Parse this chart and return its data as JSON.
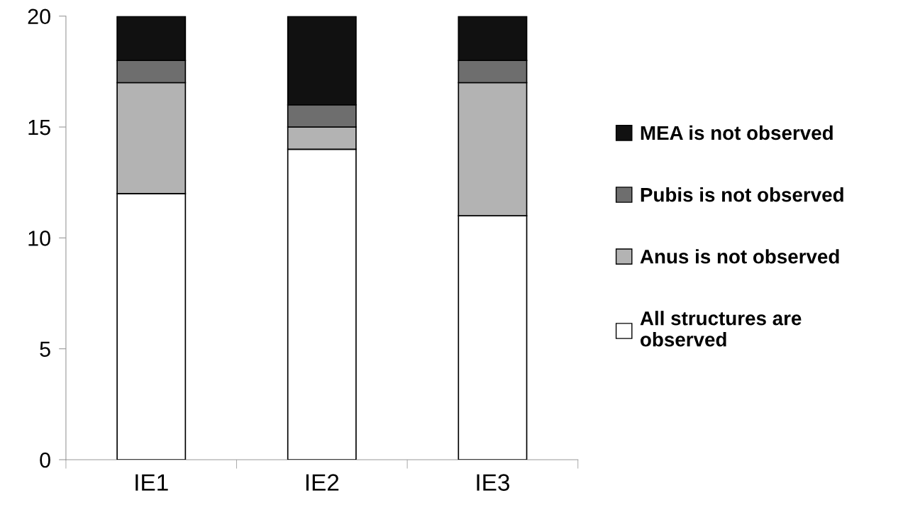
{
  "chart_data": {
    "type": "bar",
    "stacked": true,
    "categories": [
      "IE1",
      "IE2",
      "IE3"
    ],
    "series": [
      {
        "name": "All structures are\nobserved",
        "color": "#ffffff",
        "values": [
          12,
          14,
          11
        ]
      },
      {
        "name": "Anus is not observed",
        "color": "#b3b3b3",
        "values": [
          5,
          1,
          6
        ]
      },
      {
        "name": "Pubis is not observed",
        "color": "#6e6e6e",
        "values": [
          1,
          1,
          1
        ]
      },
      {
        "name": "MEA is not observed",
        "color": "#111111",
        "values": [
          2,
          4,
          2
        ]
      }
    ],
    "ylim": [
      0,
      20
    ],
    "yticks": [
      0,
      5,
      10,
      15,
      20
    ],
    "grid": false,
    "legend": "right"
  }
}
